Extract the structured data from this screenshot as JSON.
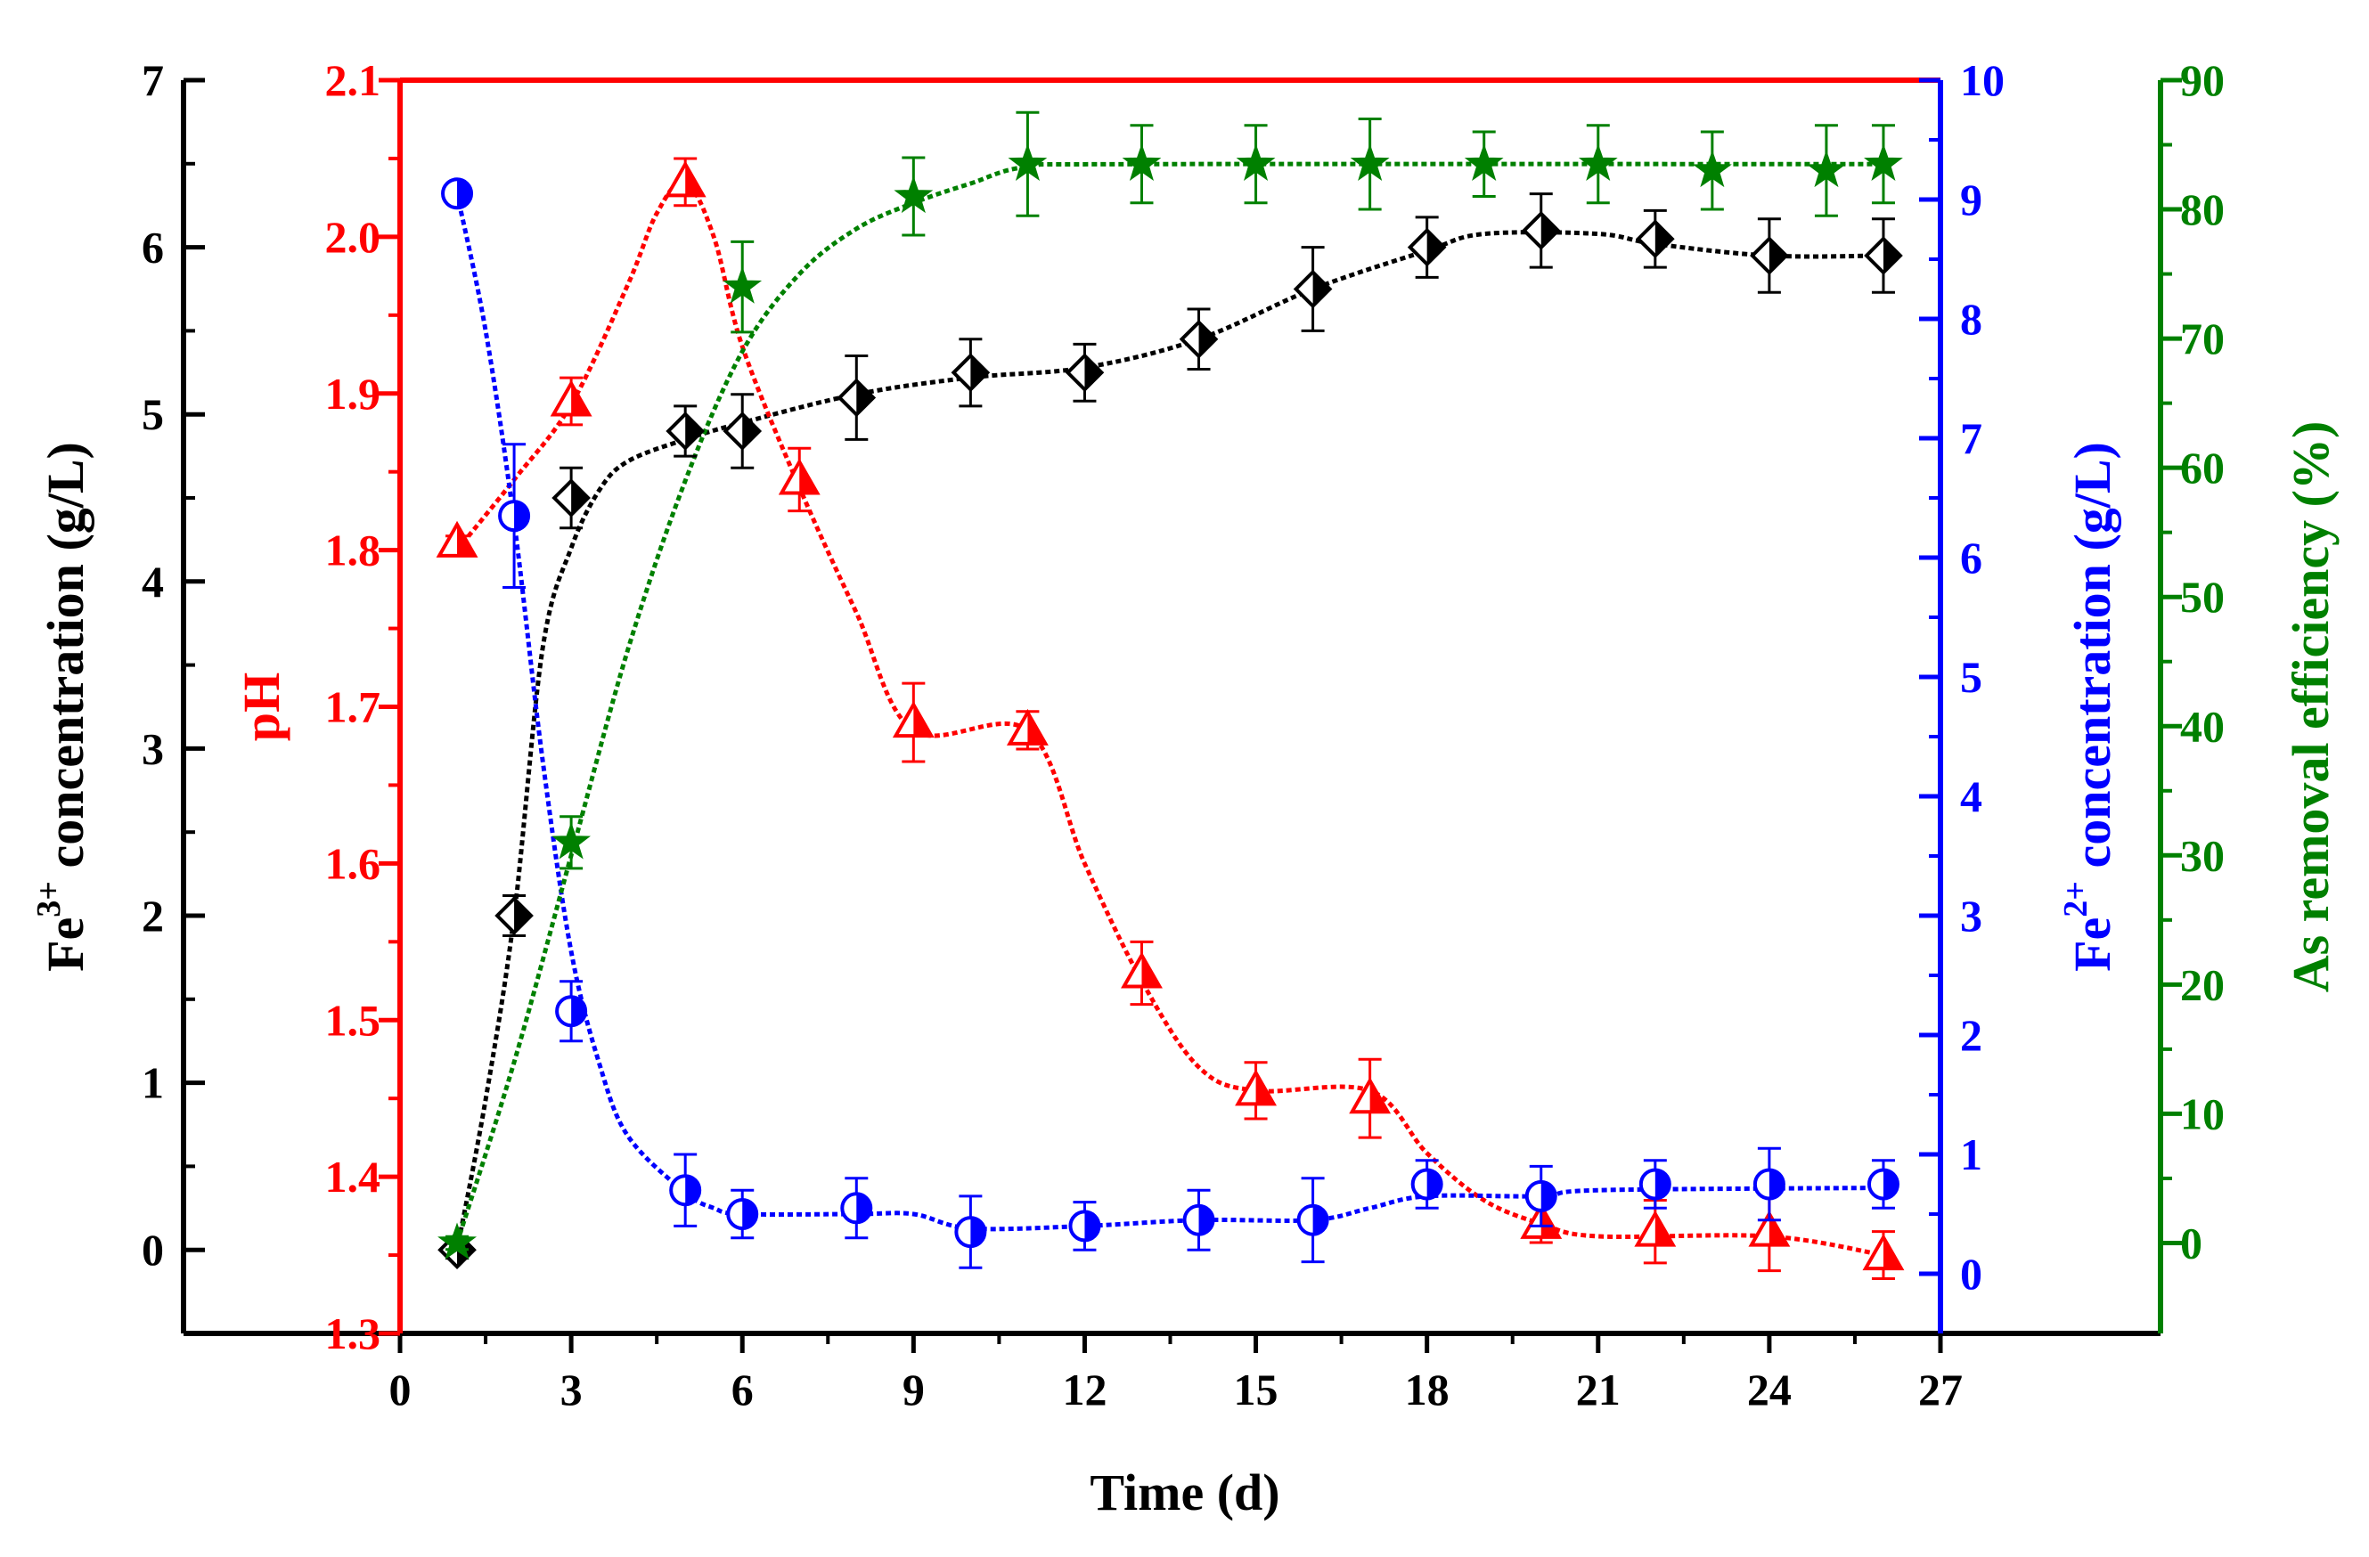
{
  "chart_data": {
    "type": "scatter",
    "title": "",
    "xlabel": "Time (d)",
    "xlim": [
      0,
      27
    ],
    "x_ticks": [
      "0",
      "3",
      "6",
      "9",
      "12",
      "15",
      "18",
      "21",
      "24",
      "27"
    ],
    "x_tick_values": [
      0,
      3,
      6,
      9,
      12,
      15,
      18,
      21,
      24,
      27
    ],
    "axes": [
      {
        "id": "fe3",
        "color": "#000000",
        "label_pre": "Fe",
        "label_sup": "3+",
        "label_post": " concentration (g/L)",
        "ylim": [
          -0.5,
          7
        ],
        "tick_values": [
          0,
          1,
          2,
          3,
          4,
          5,
          6,
          7
        ],
        "tick_labels": [
          "0",
          "1",
          "2",
          "3",
          "4",
          "5",
          "6",
          "7"
        ]
      },
      {
        "id": "ph",
        "color": "#ff0000",
        "label_pre": "pH",
        "label_sup": "",
        "label_post": "",
        "ylim": [
          1.3,
          2.1
        ],
        "tick_values": [
          1.3,
          1.4,
          1.5,
          1.6,
          1.7,
          1.8,
          1.9,
          2.0,
          2.1
        ],
        "tick_labels": [
          "1.3",
          "1.4",
          "1.5",
          "1.6",
          "1.7",
          "1.8",
          "1.9",
          "2.0",
          "2.1"
        ]
      },
      {
        "id": "fe2",
        "color": "#0000ff",
        "label_pre": "Fe",
        "label_sup": "2+",
        "label_post": " concentration (g/L)",
        "ylim": [
          -0.5,
          10
        ],
        "tick_values": [
          0,
          1,
          2,
          3,
          4,
          5,
          6,
          7,
          8,
          9,
          10
        ],
        "tick_labels": [
          "0",
          "1",
          "2",
          "3",
          "4",
          "5",
          "6",
          "7",
          "8",
          "9",
          "10"
        ]
      },
      {
        "id": "as",
        "color": "#008000",
        "label_pre": "As removal efficiency (%)",
        "label_sup": "",
        "label_post": "",
        "ylim": [
          -7,
          90
        ],
        "tick_values": [
          0,
          10,
          20,
          30,
          40,
          50,
          60,
          70,
          80,
          90
        ],
        "tick_labels": [
          "0",
          "10",
          "20",
          "30",
          "40",
          "50",
          "60",
          "70",
          "80",
          "90"
        ]
      }
    ],
    "series": [
      {
        "name": "Fe3+ concentration",
        "axis": "fe3",
        "marker": "diamond",
        "color": "#000000",
        "x": [
          1,
          2,
          3,
          5,
          6,
          8,
          10,
          12,
          14,
          16,
          18,
          20,
          22,
          24,
          26
        ],
        "y": [
          0.0,
          2.0,
          4.5,
          4.9,
          4.9,
          5.1,
          5.25,
          5.25,
          5.45,
          5.75,
          6.0,
          6.1,
          6.05,
          5.95,
          5.95
        ],
        "err": [
          0.05,
          0.12,
          0.18,
          0.15,
          0.22,
          0.25,
          0.2,
          0.17,
          0.18,
          0.25,
          0.18,
          0.22,
          0.17,
          0.22,
          0.22
        ],
        "fit": [
          [
            1,
            0.0
          ],
          [
            1.5,
            0.9
          ],
          [
            2,
            2.0
          ],
          [
            2.5,
            3.6
          ],
          [
            3,
            4.2
          ],
          [
            3.5,
            4.55
          ],
          [
            4,
            4.72
          ],
          [
            5,
            4.85
          ],
          [
            6,
            4.95
          ],
          [
            8,
            5.12
          ],
          [
            10,
            5.22
          ],
          [
            12,
            5.28
          ],
          [
            14,
            5.45
          ],
          [
            16,
            5.75
          ],
          [
            18,
            5.98
          ],
          [
            19,
            6.08
          ],
          [
            21,
            6.08
          ],
          [
            22,
            6.02
          ],
          [
            24,
            5.95
          ],
          [
            26,
            5.95
          ]
        ]
      },
      {
        "name": "pH",
        "axis": "ph",
        "marker": "triangle",
        "color": "#ff0000",
        "x": [
          1,
          3,
          5,
          7,
          9,
          11,
          13,
          15,
          17,
          20,
          22,
          24,
          26
        ],
        "y": [
          1.805,
          1.895,
          2.035,
          1.845,
          1.69,
          1.685,
          1.53,
          1.455,
          1.45,
          1.37,
          1.365,
          1.365,
          1.35
        ],
        "err": [
          0.004,
          0.015,
          0.015,
          0.02,
          0.025,
          0.012,
          0.02,
          0.018,
          0.025,
          0.012,
          0.02,
          0.025,
          0.015
        ],
        "fit": [
          [
            1,
            1.8
          ],
          [
            2,
            1.845
          ],
          [
            3,
            1.893
          ],
          [
            4,
            1.97
          ],
          [
            4.5,
            2.015
          ],
          [
            5,
            2.035
          ],
          [
            5.5,
            2.0
          ],
          [
            6,
            1.93
          ],
          [
            7,
            1.84
          ],
          [
            8,
            1.76
          ],
          [
            9,
            1.685
          ],
          [
            11,
            1.685
          ],
          [
            12,
            1.6
          ],
          [
            13,
            1.525
          ],
          [
            14,
            1.47
          ],
          [
            15,
            1.455
          ],
          [
            17,
            1.455
          ],
          [
            18,
            1.415
          ],
          [
            19,
            1.385
          ],
          [
            20,
            1.37
          ],
          [
            21,
            1.362
          ],
          [
            24,
            1.362
          ],
          [
            26,
            1.35
          ]
        ]
      },
      {
        "name": "Fe2+ concentration",
        "axis": "fe2",
        "marker": "circle",
        "color": "#0000ff",
        "x": [
          1,
          2,
          3,
          5,
          6,
          8,
          10,
          12,
          14,
          16,
          18,
          20,
          22,
          24,
          26
        ],
        "y": [
          9.05,
          6.35,
          2.2,
          0.7,
          0.5,
          0.55,
          0.35,
          0.4,
          0.45,
          0.45,
          0.75,
          0.65,
          0.75,
          0.75,
          0.75
        ],
        "err": [
          0.05,
          0.6,
          0.25,
          0.3,
          0.2,
          0.25,
          0.3,
          0.2,
          0.25,
          0.35,
          0.2,
          0.25,
          0.2,
          0.3,
          0.2
        ],
        "fit": [
          [
            1,
            9.05
          ],
          [
            1.5,
            7.9
          ],
          [
            2,
            6.3
          ],
          [
            2.5,
            4.3
          ],
          [
            3,
            2.7
          ],
          [
            3.5,
            1.75
          ],
          [
            4,
            1.15
          ],
          [
            5,
            0.68
          ],
          [
            5.5,
            0.55
          ],
          [
            6,
            0.5
          ],
          [
            8,
            0.5
          ],
          [
            9,
            0.5
          ],
          [
            10,
            0.38
          ],
          [
            12,
            0.4
          ],
          [
            14,
            0.45
          ],
          [
            16,
            0.45
          ],
          [
            17,
            0.55
          ],
          [
            18,
            0.65
          ],
          [
            20,
            0.65
          ],
          [
            21,
            0.7
          ],
          [
            26,
            0.72
          ]
        ]
      },
      {
        "name": "As removal efficiency",
        "axis": "as",
        "marker": "star",
        "color": "#008000",
        "x": [
          1,
          3,
          6,
          9,
          11,
          13,
          15,
          17,
          19,
          21,
          23,
          25,
          26
        ],
        "y": [
          0,
          31,
          74,
          81,
          83.5,
          83.5,
          83.5,
          83.5,
          83.5,
          83.5,
          83,
          83,
          83.5
        ],
        "err": [
          0.5,
          2,
          3.5,
          3,
          4,
          3,
          3,
          3.5,
          2.5,
          3,
          3,
          3.5,
          3
        ],
        "fit": [
          [
            1,
            0
          ],
          [
            2,
            14
          ],
          [
            3,
            30
          ],
          [
            4,
            46
          ],
          [
            5,
            59
          ],
          [
            6,
            69
          ],
          [
            7,
            75
          ],
          [
            8,
            78.5
          ],
          [
            9,
            80.5
          ],
          [
            10,
            82
          ],
          [
            11,
            83.3
          ],
          [
            13,
            83.5
          ],
          [
            26,
            83.5
          ]
        ]
      }
    ]
  }
}
